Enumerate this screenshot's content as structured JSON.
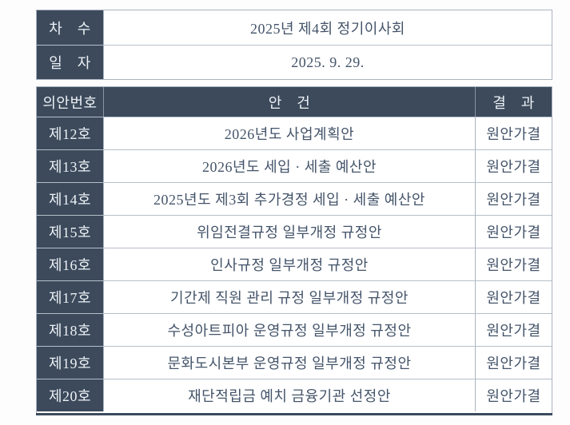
{
  "colors": {
    "dark_cell_background": "#3c4a5c",
    "light_text": "#edf1f5",
    "body_text": "#44546a",
    "cell_border": "#aab4c0",
    "bottom_rule": "#3c4a5c",
    "page_background": "#fdfdfd"
  },
  "info_table": {
    "rows": [
      {
        "label": "차　수",
        "value": "2025년 제4회 정기이사회"
      },
      {
        "label": "일　자",
        "value": "2025. 9. 29."
      }
    ]
  },
  "agenda_table": {
    "headers": {
      "number": "의안번호",
      "item": "안　건",
      "result": "결　과"
    },
    "rows": [
      {
        "number": "제12호",
        "item": "2026년도 사업계획안",
        "result": "원안가결"
      },
      {
        "number": "제13호",
        "item": "2026년도 세입 · 세출 예산안",
        "result": "원안가결"
      },
      {
        "number": "제14호",
        "item": "2025년도 제3회 추가경정 세입 · 세출 예산안",
        "result": "원안가결"
      },
      {
        "number": "제15호",
        "item": "위임전결규정 일부개정 규정안",
        "result": "원안가결"
      },
      {
        "number": "제16호",
        "item": "인사규정 일부개정 규정안",
        "result": "원안가결"
      },
      {
        "number": "제17호",
        "item": "기간제 직원 관리 규정 일부개정 규정안",
        "result": "원안가결"
      },
      {
        "number": "제18호",
        "item": "수성아트피아 운영규정 일부개정 규정안",
        "result": "원안가결"
      },
      {
        "number": "제19호",
        "item": "문화도시본부 운영규정 일부개정 규정안",
        "result": "원안가결"
      },
      {
        "number": "제20호",
        "item": "재단적립금 예치 금융기관 선정안",
        "result": "원안가결"
      }
    ]
  }
}
